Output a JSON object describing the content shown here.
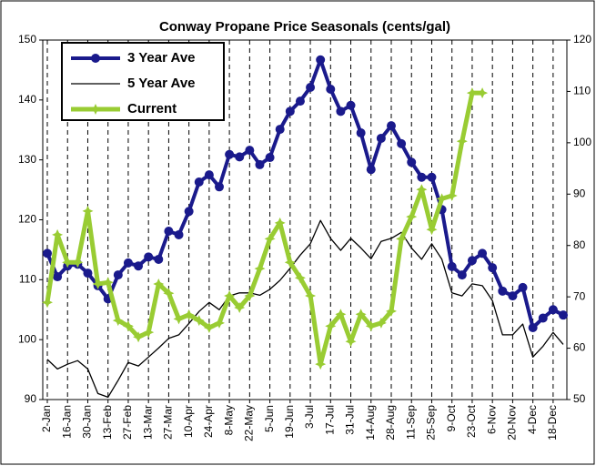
{
  "chart_data": {
    "type": "line",
    "title": "Conway Propane Price Seasonals (cents/gal)",
    "categories": [
      "2-Jan",
      null,
      "16-Jan",
      null,
      "30-Jan",
      null,
      "13-Feb",
      null,
      "27-Feb",
      null,
      "13-Mar",
      null,
      "27-Mar",
      null,
      "10-Apr",
      null,
      "24-Apr",
      null,
      "8-May",
      null,
      "22-May",
      null,
      "5-Jun",
      null,
      "19-Jun",
      null,
      "3-Jul",
      null,
      "17-Jul",
      null,
      "31-Jul",
      null,
      "14-Aug",
      null,
      "28-Aug",
      null,
      "11-Sep",
      null,
      "25-Sep",
      null,
      "9-Oct",
      null,
      "23-Oct",
      null,
      "6-Nov",
      null,
      "20-Nov",
      null,
      "4-Dec",
      null,
      "18-Dec",
      null
    ],
    "series": [
      {
        "name": "3 Year Ave",
        "color": "#1a1a8c",
        "marker": "circle",
        "values": [
          114.4,
          110.5,
          112.3,
          112.6,
          111.1,
          109.0,
          106.8,
          110.8,
          112.8,
          112.3,
          113.8,
          113.4,
          118.1,
          117.5,
          121.4,
          126.3,
          127.5,
          125.5,
          130.9,
          130.5,
          131.6,
          129.2,
          130.4,
          135.1,
          138.1,
          139.8,
          142.1,
          146.7,
          141.8,
          138.1,
          139.1,
          134.5,
          128.4,
          133.6,
          135.7,
          132.7,
          129.6,
          127.1,
          127.1,
          121.7,
          112.2,
          110.8,
          113.2,
          114.4,
          112.0,
          108.1,
          107.3,
          108.7,
          102.0,
          103.6,
          105.0,
          104.1
        ]
      },
      {
        "name": "5 Year Ave",
        "color": "#000000",
        "values": [
          96.7,
          95.1,
          95.9,
          96.5,
          95.1,
          91.0,
          90.4,
          93.2,
          96.2,
          95.6,
          97.1,
          98.6,
          100.2,
          100.8,
          102.7,
          104.7,
          106.2,
          105.0,
          107.3,
          107.8,
          107.8,
          107.4,
          108.4,
          109.9,
          111.9,
          114.1,
          116.0,
          119.9,
          116.9,
          114.9,
          116.9,
          115.3,
          113.5,
          116.4,
          116.9,
          117.9,
          115.3,
          113.4,
          116.0,
          113.4,
          107.8,
          107.3,
          109.3,
          109.0,
          106.5,
          100.8,
          100.8,
          102.6,
          97.1,
          98.9,
          101.2,
          99.2
        ]
      },
      {
        "name": "Current",
        "color": "#99cc33",
        "marker": "star",
        "axis": "y2",
        "values": [
          68.9,
          82.1,
          76.7,
          76.7,
          86.7,
          72.5,
          72.8,
          65.4,
          64.3,
          62.2,
          63.1,
          72.5,
          70.7,
          65.7,
          66.5,
          65.4,
          64.0,
          64.9,
          70.2,
          67.9,
          70.2,
          75.5,
          81.3,
          84.4,
          76.7,
          73.7,
          70.2,
          56.9,
          64.3,
          66.6,
          61.3,
          66.6,
          64.3,
          64.9,
          67.2,
          81.3,
          85.6,
          90.9,
          83.1,
          89.1,
          89.7,
          100.3,
          109.7,
          109.7,
          null,
          null,
          null,
          null,
          null,
          null,
          null,
          null
        ]
      }
    ],
    "ylim": [
      90,
      150
    ],
    "yticks": [
      90,
      100,
      110,
      120,
      130,
      140,
      150
    ],
    "y2lim": [
      50,
      120
    ],
    "y2ticks": [
      50,
      60,
      70,
      80,
      90,
      100,
      110,
      120
    ],
    "legend": "upper left"
  }
}
